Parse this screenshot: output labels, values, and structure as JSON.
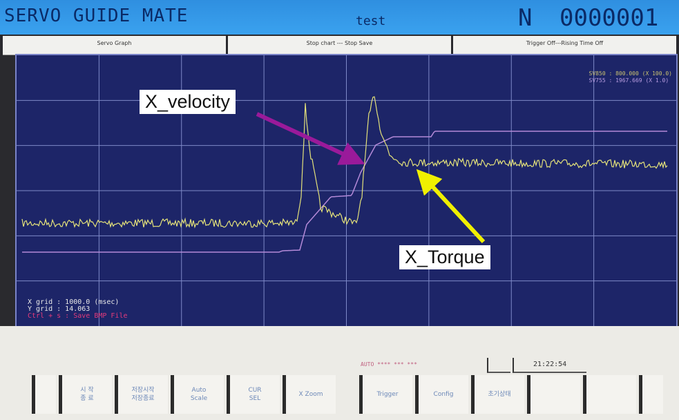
{
  "title": {
    "app": "SERVO GUIDE MATE",
    "program": "test",
    "n_label": "N",
    "n_value": "0000001"
  },
  "tabs": [
    "Servo Graph",
    "Stop chart --- Stop Save",
    "Trigger Off---Rising Time Off"
  ],
  "graph": {
    "legend": [
      {
        "signal": "SV850",
        "value": "800.000",
        "scale": "(X 100.0)",
        "color": "#c8c070"
      },
      {
        "signal": "SV755",
        "value": "1967.669",
        "scale": "(X 1.0)",
        "color": "#b89ce0"
      }
    ],
    "x_grid": "X grid : 1000.0 (msec)",
    "y_grid": "Y grid : 14.063",
    "save_hint": "Ctrl + s : Save BMP File",
    "colors": {
      "background": "#1d2568",
      "torque": "#e4e27a",
      "velocity": "#b48ad8",
      "grid": "#7f8ac8"
    }
  },
  "annotations": {
    "velocity": "X_velocity",
    "torque": "X_Torque",
    "velocity_arrow_color": "#9a1a9a",
    "torque_arrow_color": "#f0f000"
  },
  "status": {
    "mode": "AUTO **** *** ***",
    "time": "21:22:54"
  },
  "softkeys": [
    "",
    "시 작\n종 료",
    "저장시작\n저장종료",
    "Auto\nScale",
    "CUR\nSEL",
    "X Zoom",
    "Trigger",
    "Config",
    "초기상태",
    "",
    "",
    ""
  ]
}
